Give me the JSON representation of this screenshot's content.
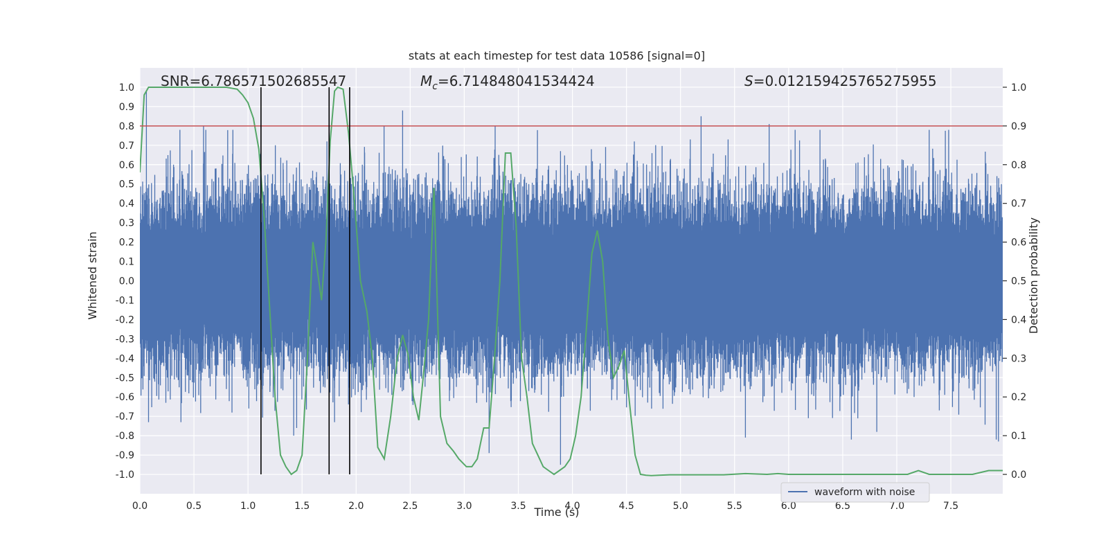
{
  "chart_data": {
    "type": "line",
    "title": "stats at each timestep for test data 10586 [signal=0]",
    "xlabel": "Time (s)",
    "ylabel_left": "Whitened strain",
    "ylabel_right": "Detection probability",
    "xlim": [
      0.0,
      7.98
    ],
    "ylim_left": [
      -1.1,
      1.1
    ],
    "ylim_right": [
      -0.05,
      1.05
    ],
    "x_ticks": [
      "0.0",
      "0.5",
      "1.0",
      "1.5",
      "2.0",
      "2.5",
      "3.0",
      "3.5",
      "4.0",
      "4.5",
      "5.0",
      "5.5",
      "6.0",
      "6.5",
      "7.0",
      "7.5"
    ],
    "y_ticks_left": [
      "1.0",
      "0.9",
      "0.8",
      "0.7",
      "0.6",
      "0.5",
      "0.4",
      "0.3",
      "0.2",
      "0.1",
      "0.0",
      "-0.1",
      "-0.2",
      "-0.3",
      "-0.4",
      "-0.5",
      "-0.6",
      "-0.7",
      "-0.8",
      "-0.9",
      "-1.0"
    ],
    "y_ticks_right": [
      "1.0",
      "0.9",
      "0.8",
      "0.7",
      "0.6",
      "0.5",
      "0.4",
      "0.3",
      "0.2",
      "0.1",
      "0.0"
    ],
    "grid": true,
    "legend_position": "lower-right",
    "annotations": {
      "snr": "SNR=6.786571502685547",
      "mc": "=6.714848041534424",
      "mc_symbol": "M",
      "mc_subscript": "c",
      "s": "=0.012159425765275955",
      "s_symbol": "S"
    },
    "threshold_line": {
      "value_right_axis": 0.9,
      "color": "#c44e52"
    },
    "vertical_lines": [
      1.12,
      1.75,
      1.94
    ],
    "series": [
      {
        "name": "waveform with noise",
        "axis": "left",
        "color": "#4c72b0",
        "typical_amplitude": 0.3,
        "spikes": [
          [
            0.06,
            0.98
          ],
          [
            0.08,
            -0.73
          ],
          [
            0.24,
            -0.63
          ],
          [
            0.37,
            0.78
          ],
          [
            0.38,
            -0.73
          ],
          [
            0.61,
            0.78
          ],
          [
            0.86,
            0.78
          ],
          [
            1.45,
            -0.76
          ],
          [
            1.73,
            0.72
          ],
          [
            1.8,
            -0.73
          ],
          [
            2.43,
            0.88
          ],
          [
            2.61,
            0.5
          ],
          [
            3.23,
            -0.89
          ],
          [
            3.89,
            -0.95
          ],
          [
            3.89,
            0.67
          ],
          [
            4.6,
            0.62
          ],
          [
            5.09,
            0.73
          ],
          [
            5.19,
            0.85
          ],
          [
            5.44,
            0.73
          ],
          [
            5.6,
            -0.81
          ],
          [
            5.82,
            0.81
          ],
          [
            6.06,
            0.78
          ],
          [
            6.29,
            0.78
          ],
          [
            6.58,
            -0.82
          ],
          [
            7.3,
            0.78
          ],
          [
            7.48,
            0.78
          ],
          [
            7.92,
            -0.82
          ],
          [
            7.94,
            -0.83
          ]
        ]
      },
      {
        "name": "",
        "axis": "right",
        "color": "#55a868",
        "x": [
          0.0,
          0.04,
          0.08,
          0.12,
          0.2,
          0.3,
          0.4,
          0.5,
          0.6,
          0.7,
          0.8,
          0.9,
          0.95,
          1.0,
          1.05,
          1.1,
          1.15,
          1.2,
          1.25,
          1.3,
          1.35,
          1.4,
          1.45,
          1.5,
          1.55,
          1.6,
          1.63,
          1.68,
          1.72,
          1.76,
          1.8,
          1.83,
          1.88,
          1.93,
          1.98,
          2.04,
          2.1,
          2.15,
          2.2,
          2.26,
          2.32,
          2.38,
          2.43,
          2.48,
          2.53,
          2.58,
          2.62,
          2.67,
          2.72,
          2.78,
          2.84,
          2.9,
          2.95,
          3.02,
          3.07,
          3.12,
          3.18,
          3.23,
          3.28,
          3.33,
          3.38,
          3.43,
          3.48,
          3.53,
          3.58,
          3.63,
          3.68,
          3.73,
          3.78,
          3.83,
          3.88,
          3.93,
          3.98,
          4.03,
          4.08,
          4.13,
          4.18,
          4.23,
          4.28,
          4.33,
          4.38,
          4.43,
          4.48,
          4.53,
          4.58,
          4.63,
          4.68,
          4.73,
          4.8,
          4.9,
          5.0,
          5.2,
          5.4,
          5.6,
          5.8,
          5.9,
          6.0,
          6.1,
          6.2,
          6.3,
          6.5,
          6.7,
          6.9,
          7.1,
          7.2,
          7.3,
          7.5,
          7.7,
          7.85,
          7.92,
          7.98
        ],
        "y": [
          0.78,
          0.98,
          1.0,
          1.0,
          1.0,
          1.0,
          1.0,
          1.0,
          1.0,
          1.0,
          1.0,
          0.995,
          0.98,
          0.96,
          0.92,
          0.84,
          0.66,
          0.43,
          0.2,
          0.05,
          0.02,
          0.0,
          0.01,
          0.05,
          0.3,
          0.6,
          0.55,
          0.45,
          0.6,
          0.86,
          0.99,
          1.0,
          0.995,
          0.88,
          0.72,
          0.5,
          0.42,
          0.3,
          0.07,
          0.04,
          0.15,
          0.3,
          0.36,
          0.31,
          0.2,
          0.14,
          0.25,
          0.4,
          0.74,
          0.15,
          0.08,
          0.06,
          0.04,
          0.02,
          0.02,
          0.04,
          0.12,
          0.12,
          0.3,
          0.5,
          0.83,
          0.83,
          0.64,
          0.3,
          0.2,
          0.08,
          0.05,
          0.02,
          0.01,
          0.0,
          0.01,
          0.02,
          0.04,
          0.1,
          0.2,
          0.38,
          0.57,
          0.63,
          0.55,
          0.35,
          0.25,
          0.28,
          0.32,
          0.18,
          0.05,
          0.0,
          -0.002,
          -0.003,
          -0.002,
          -0.001,
          -0.001,
          -0.001,
          -0.001,
          0.002,
          0.0,
          0.002,
          0.0,
          0.0,
          0.0,
          0.0,
          0.0,
          0.0,
          0.0,
          0.0,
          0.01,
          0.0,
          0.0,
          0.0,
          0.01,
          0.01,
          0.01
        ]
      }
    ]
  }
}
